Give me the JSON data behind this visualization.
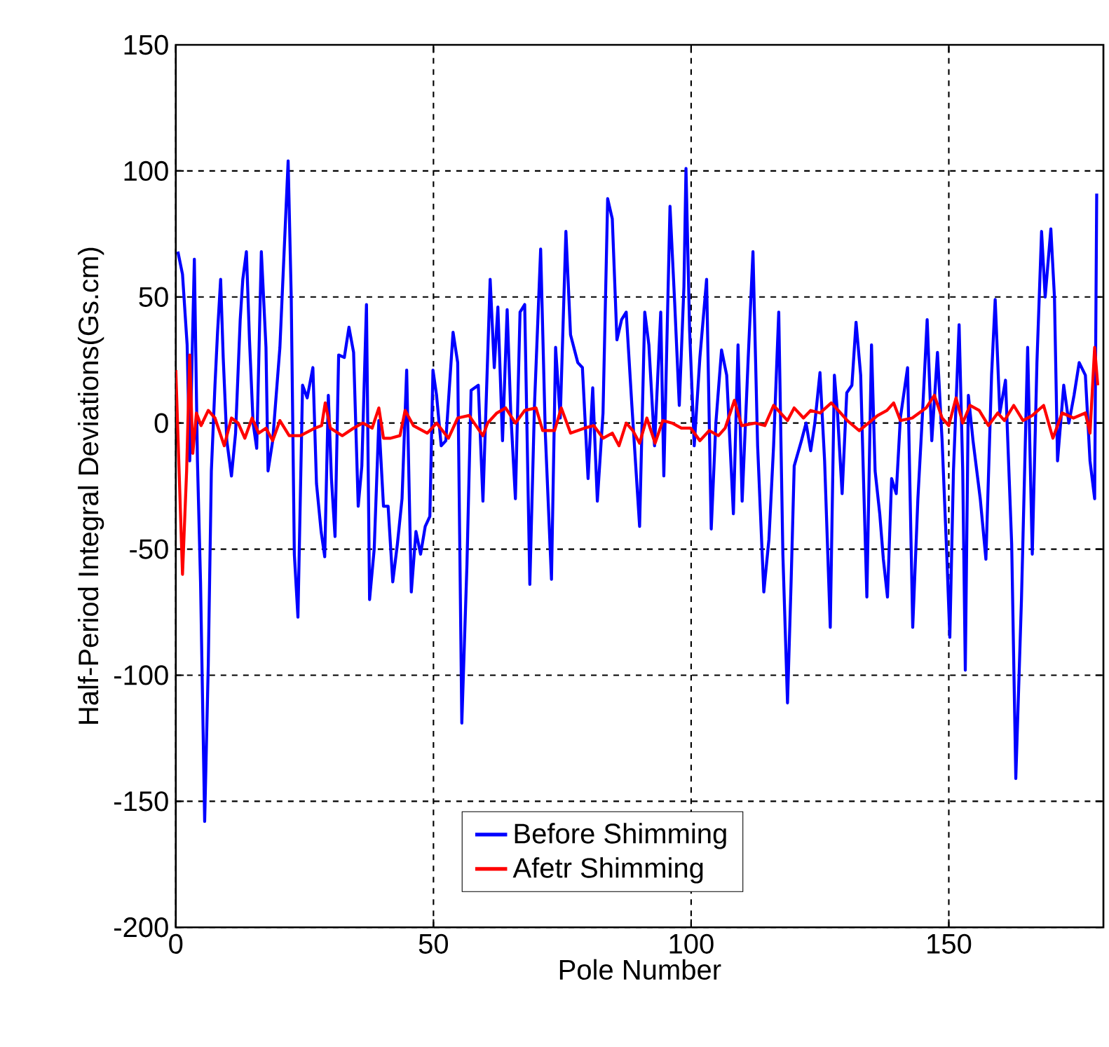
{
  "chart_data": {
    "type": "line",
    "xlabel": "Pole Number",
    "ylabel": "Half-Period Integral Deviations(Gs.cm)",
    "xlim": [
      0,
      180
    ],
    "ylim": [
      -200,
      150
    ],
    "xticks": [
      0,
      50,
      100,
      150
    ],
    "yticks": [
      -200,
      -150,
      -100,
      -50,
      0,
      50,
      100,
      150
    ],
    "grid": true,
    "legend": "bottom",
    "marker": "none",
    "line_style": "solid",
    "series": [
      {
        "name": "Before Shimming",
        "color": "#0000ff",
        "x": [
          0.4,
          1.3,
          2.2,
          2.7,
          3.6,
          4.2,
          4.8,
          5.6,
          6.3,
          6.9,
          7.6,
          8.1,
          8.7,
          9.2,
          9.9,
          10.8,
          11.6,
          12.5,
          13,
          13.7,
          14.3,
          15,
          15.7,
          16.6,
          17.5,
          17.9,
          18.8,
          20.2,
          21,
          21.8,
          22.4,
          23,
          23.7,
          24.6,
          25.5,
          26.6,
          27.3,
          28.2,
          28.9,
          29.6,
          30.2,
          30.9,
          31.6,
          32.7,
          33.6,
          34.5,
          35.4,
          36.1,
          37,
          37.6,
          38.5,
          39.4,
          40.3,
          41.2,
          42.1,
          43,
          43.9,
          44.8,
          45.7,
          46.6,
          47.5,
          48.4,
          49.3,
          49.9,
          50.6,
          51.5,
          52.4,
          53.8,
          54.7,
          55.5,
          56.5,
          57.3,
          58.7,
          59.6,
          61,
          61.8,
          62.5,
          63.4,
          64.3,
          65,
          65.9,
          66.8,
          67.7,
          68.7,
          69.6,
          70.8,
          71.7,
          72.9,
          73.7,
          74.6,
          75.7,
          76.6,
          78,
          78.9,
          80,
          80.9,
          81.8,
          82.9,
          83.8,
          84.7,
          85.6,
          86.5,
          87.4,
          88.5,
          90,
          91,
          91.8,
          92.9,
          94.1,
          94.7,
          95.9,
          96.8,
          97.7,
          98.6,
          99,
          99.7,
          100.6,
          101.7,
          103,
          103.9,
          104.8,
          105.9,
          106.9,
          108.2,
          109.1,
          109.9,
          111.1,
          112,
          112.9,
          114.1,
          115.1,
          116,
          117,
          117.8,
          118.7,
          119.4,
          120,
          121.4,
          122.3,
          123.2,
          124,
          125,
          125.9,
          127,
          127.8,
          128.4,
          129.3,
          130.2,
          131.2,
          132,
          132.9,
          133.5,
          134.1,
          135,
          135.7,
          136.6,
          137.3,
          138.1,
          138.9,
          139.8,
          140.6,
          142,
          143,
          144,
          144.9,
          145.8,
          146.7,
          147.8,
          148.7,
          149.6,
          150.2,
          150.9,
          152,
          152.7,
          153.2,
          153.8,
          154.7,
          156.1,
          157.2,
          158.3,
          159,
          159.9,
          161,
          162.2,
          163,
          164.1,
          165.3,
          166.2,
          167.1,
          168,
          168.7,
          169.8,
          170.5,
          171.1,
          172.3,
          173.3,
          174.3,
          175.3,
          176.5,
          177.4,
          178.3,
          178.7
        ],
        "values": [
          68,
          59,
          31,
          -15,
          65,
          -15,
          -63,
          -158,
          -96,
          -19,
          15,
          36,
          57,
          26,
          -7,
          -21,
          -4,
          41,
          57,
          68,
          33,
          0,
          -10,
          68,
          30,
          -19,
          -7,
          30,
          67,
          104,
          50,
          -52,
          -77,
          15,
          10,
          22,
          -24,
          -43,
          -53,
          11,
          -22,
          -45,
          27,
          26,
          38,
          28,
          -33,
          -17,
          47,
          -70,
          -50,
          1,
          -33,
          -33,
          -63,
          -48,
          -30,
          21,
          -67,
          -43,
          -52,
          -41,
          -37,
          21,
          11,
          -9,
          -7,
          36,
          24,
          -119,
          -56,
          13,
          15,
          -31,
          57,
          22,
          46,
          -7,
          45,
          4,
          -30,
          44,
          47,
          -64,
          7,
          69,
          -4,
          -62,
          30,
          2,
          76,
          35,
          24,
          22,
          -22,
          14,
          -31,
          4,
          89,
          81,
          33,
          41,
          44,
          7,
          -41,
          44,
          31,
          -9,
          44,
          -21,
          86,
          48,
          7,
          54,
          101,
          37,
          -9,
          26,
          57,
          -42,
          0,
          29,
          19,
          -36,
          31,
          -31,
          27,
          68,
          -9,
          -67,
          -46,
          -9,
          44,
          -52,
          -111,
          -63,
          -17,
          -7,
          0,
          -11,
          0,
          20,
          -15,
          -81,
          19,
          4,
          -28,
          12,
          15,
          40,
          19,
          -26,
          -69,
          31,
          -19,
          -36,
          -54,
          -69,
          -22,
          -28,
          2,
          22,
          -81,
          -30,
          4,
          41,
          -7,
          28,
          -7,
          -52,
          -85,
          -19,
          39,
          -19,
          -98,
          11,
          -7,
          -30,
          -54,
          19,
          49,
          4,
          17,
          -48,
          -141,
          -70,
          30,
          -52,
          24,
          76,
          50,
          77,
          50,
          -15,
          15,
          0,
          11,
          24,
          19,
          -15,
          -30,
          91
        ]
      },
      {
        "name": "Afetr Shimming",
        "color": "#ff0000",
        "x": [
          0,
          1.3,
          2.1,
          2.7,
          3.3,
          4,
          4.9,
          6.3,
          7.6,
          9.4,
          10.8,
          12.1,
          13.4,
          14.8,
          16.1,
          17.5,
          18.8,
          20.2,
          22,
          24.2,
          27,
          28.3,
          29,
          30,
          32.3,
          34.5,
          36.3,
          38.1,
          39.4,
          40.3,
          41.7,
          43.5,
          44.5,
          46.1,
          48.8,
          50.6,
          52.9,
          54.7,
          56.9,
          59.6,
          60.5,
          62.3,
          64,
          65.9,
          67.7,
          69.9,
          71.2,
          73.5,
          74.8,
          76.6,
          79.3,
          81.1,
          82.9,
          84.7,
          86,
          87.4,
          88.7,
          90,
          91.4,
          93,
          94.5,
          96.3,
          98.1,
          99.9,
          101.7,
          103.5,
          105.3,
          106.6,
          108.4,
          109.8,
          112.5,
          114.3,
          116,
          118.7,
          120,
          121.8,
          123.2,
          125,
          127.2,
          129,
          130.3,
          132.6,
          134.4,
          136.2,
          138,
          139.3,
          140.6,
          142.9,
          145.6,
          147.2,
          148.7,
          150,
          151.4,
          152.7,
          154.1,
          155.9,
          157.7,
          159.5,
          160.8,
          162.6,
          164.4,
          166.2,
          168.4,
          170.2,
          172,
          174.2,
          176.5,
          177.4,
          178.3,
          178.9
        ],
        "values": [
          21,
          -60,
          -19,
          27,
          -12,
          4,
          -1,
          5,
          2,
          -9,
          2,
          0,
          -6,
          2,
          -4,
          -2,
          -7,
          1,
          -5,
          -5,
          -2,
          -1,
          8,
          -2,
          -5,
          -2,
          0,
          -2,
          6,
          -6,
          -6,
          -5,
          5,
          -1,
          -4,
          0,
          -6,
          2,
          3,
          -5,
          0,
          4,
          6,
          0,
          5,
          6,
          -3,
          -3,
          6,
          -4,
          -2,
          -1,
          -6,
          -4,
          -9,
          0,
          -3,
          -8,
          2,
          -8,
          1,
          0,
          -2,
          -2,
          -7,
          -3,
          -5,
          -2,
          9,
          -1,
          0,
          -1,
          7,
          1,
          6,
          2,
          5,
          4,
          8,
          4,
          1,
          -3,
          0,
          3,
          5,
          8,
          1,
          2,
          6,
          11,
          2,
          -1,
          10,
          0,
          7,
          5,
          -1,
          4,
          1,
          7,
          1,
          3,
          7,
          -6,
          4,
          2,
          4,
          -4,
          30,
          15
        ]
      }
    ]
  }
}
